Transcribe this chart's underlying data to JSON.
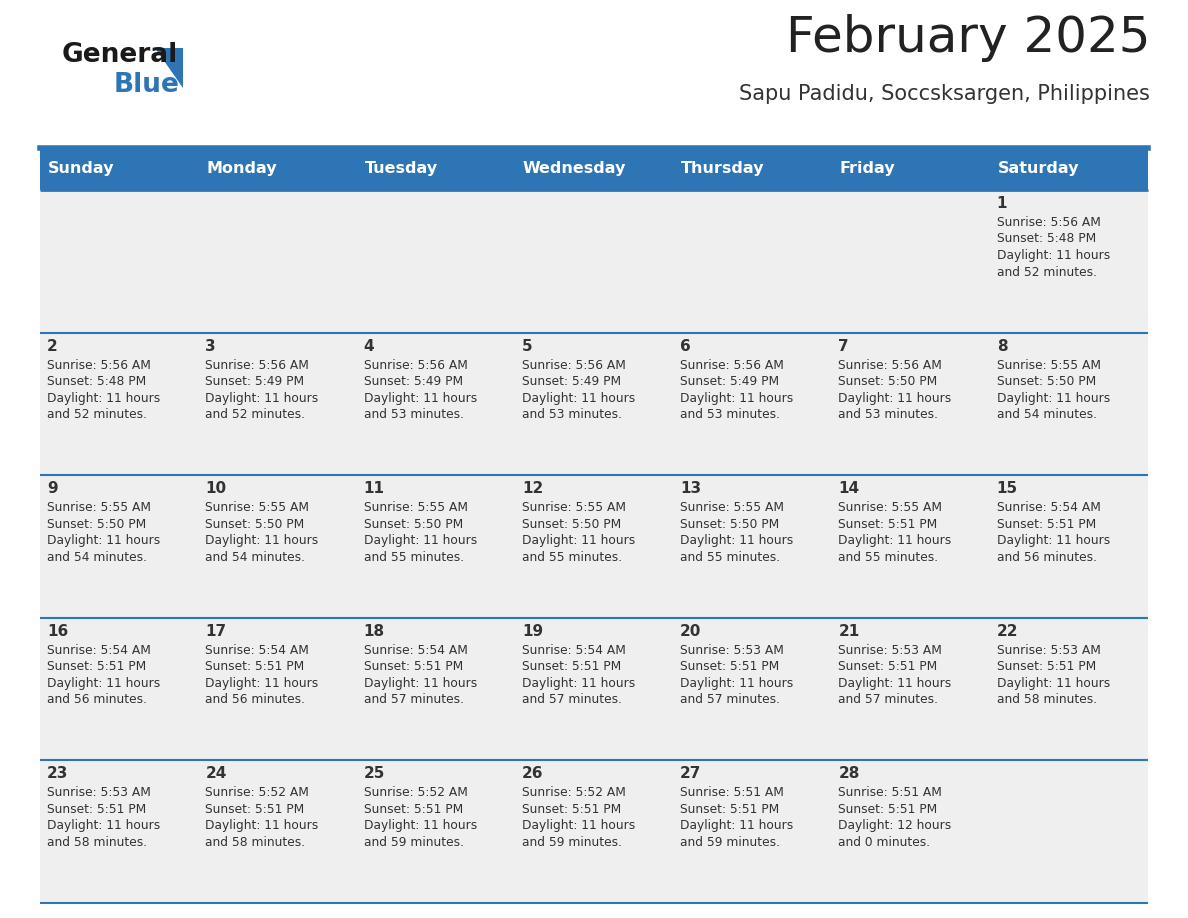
{
  "title": "February 2025",
  "subtitle": "Sapu Padidu, Soccsksargen, Philippines",
  "days_of_week": [
    "Sunday",
    "Monday",
    "Tuesday",
    "Wednesday",
    "Thursday",
    "Friday",
    "Saturday"
  ],
  "header_bg_color": "#2E75B6",
  "header_text_color": "#FFFFFF",
  "cell_bg_color": "#EFEFEF",
  "day_number_color": "#333333",
  "info_text_color": "#333333",
  "divider_color": "#2E75B6",
  "title_color": "#222222",
  "subtitle_color": "#333333",
  "logo_general_color": "#1a1a1a",
  "logo_blue_color": "#2E75B6",
  "calendar_data": [
    {
      "day": 1,
      "col": 6,
      "row": 0,
      "sunrise": "5:56 AM",
      "sunset": "5:48 PM",
      "daylight_hours": 11,
      "daylight_minutes": 52
    },
    {
      "day": 2,
      "col": 0,
      "row": 1,
      "sunrise": "5:56 AM",
      "sunset": "5:48 PM",
      "daylight_hours": 11,
      "daylight_minutes": 52
    },
    {
      "day": 3,
      "col": 1,
      "row": 1,
      "sunrise": "5:56 AM",
      "sunset": "5:49 PM",
      "daylight_hours": 11,
      "daylight_minutes": 52
    },
    {
      "day": 4,
      "col": 2,
      "row": 1,
      "sunrise": "5:56 AM",
      "sunset": "5:49 PM",
      "daylight_hours": 11,
      "daylight_minutes": 53
    },
    {
      "day": 5,
      "col": 3,
      "row": 1,
      "sunrise": "5:56 AM",
      "sunset": "5:49 PM",
      "daylight_hours": 11,
      "daylight_minutes": 53
    },
    {
      "day": 6,
      "col": 4,
      "row": 1,
      "sunrise": "5:56 AM",
      "sunset": "5:49 PM",
      "daylight_hours": 11,
      "daylight_minutes": 53
    },
    {
      "day": 7,
      "col": 5,
      "row": 1,
      "sunrise": "5:56 AM",
      "sunset": "5:50 PM",
      "daylight_hours": 11,
      "daylight_minutes": 53
    },
    {
      "day": 8,
      "col": 6,
      "row": 1,
      "sunrise": "5:55 AM",
      "sunset": "5:50 PM",
      "daylight_hours": 11,
      "daylight_minutes": 54
    },
    {
      "day": 9,
      "col": 0,
      "row": 2,
      "sunrise": "5:55 AM",
      "sunset": "5:50 PM",
      "daylight_hours": 11,
      "daylight_minutes": 54
    },
    {
      "day": 10,
      "col": 1,
      "row": 2,
      "sunrise": "5:55 AM",
      "sunset": "5:50 PM",
      "daylight_hours": 11,
      "daylight_minutes": 54
    },
    {
      "day": 11,
      "col": 2,
      "row": 2,
      "sunrise": "5:55 AM",
      "sunset": "5:50 PM",
      "daylight_hours": 11,
      "daylight_minutes": 55
    },
    {
      "day": 12,
      "col": 3,
      "row": 2,
      "sunrise": "5:55 AM",
      "sunset": "5:50 PM",
      "daylight_hours": 11,
      "daylight_minutes": 55
    },
    {
      "day": 13,
      "col": 4,
      "row": 2,
      "sunrise": "5:55 AM",
      "sunset": "5:50 PM",
      "daylight_hours": 11,
      "daylight_minutes": 55
    },
    {
      "day": 14,
      "col": 5,
      "row": 2,
      "sunrise": "5:55 AM",
      "sunset": "5:51 PM",
      "daylight_hours": 11,
      "daylight_minutes": 55
    },
    {
      "day": 15,
      "col": 6,
      "row": 2,
      "sunrise": "5:54 AM",
      "sunset": "5:51 PM",
      "daylight_hours": 11,
      "daylight_minutes": 56
    },
    {
      "day": 16,
      "col": 0,
      "row": 3,
      "sunrise": "5:54 AM",
      "sunset": "5:51 PM",
      "daylight_hours": 11,
      "daylight_minutes": 56
    },
    {
      "day": 17,
      "col": 1,
      "row": 3,
      "sunrise": "5:54 AM",
      "sunset": "5:51 PM",
      "daylight_hours": 11,
      "daylight_minutes": 56
    },
    {
      "day": 18,
      "col": 2,
      "row": 3,
      "sunrise": "5:54 AM",
      "sunset": "5:51 PM",
      "daylight_hours": 11,
      "daylight_minutes": 57
    },
    {
      "day": 19,
      "col": 3,
      "row": 3,
      "sunrise": "5:54 AM",
      "sunset": "5:51 PM",
      "daylight_hours": 11,
      "daylight_minutes": 57
    },
    {
      "day": 20,
      "col": 4,
      "row": 3,
      "sunrise": "5:53 AM",
      "sunset": "5:51 PM",
      "daylight_hours": 11,
      "daylight_minutes": 57
    },
    {
      "day": 21,
      "col": 5,
      "row": 3,
      "sunrise": "5:53 AM",
      "sunset": "5:51 PM",
      "daylight_hours": 11,
      "daylight_minutes": 57
    },
    {
      "day": 22,
      "col": 6,
      "row": 3,
      "sunrise": "5:53 AM",
      "sunset": "5:51 PM",
      "daylight_hours": 11,
      "daylight_minutes": 58
    },
    {
      "day": 23,
      "col": 0,
      "row": 4,
      "sunrise": "5:53 AM",
      "sunset": "5:51 PM",
      "daylight_hours": 11,
      "daylight_minutes": 58
    },
    {
      "day": 24,
      "col": 1,
      "row": 4,
      "sunrise": "5:52 AM",
      "sunset": "5:51 PM",
      "daylight_hours": 11,
      "daylight_minutes": 58
    },
    {
      "day": 25,
      "col": 2,
      "row": 4,
      "sunrise": "5:52 AM",
      "sunset": "5:51 PM",
      "daylight_hours": 11,
      "daylight_minutes": 59
    },
    {
      "day": 26,
      "col": 3,
      "row": 4,
      "sunrise": "5:52 AM",
      "sunset": "5:51 PM",
      "daylight_hours": 11,
      "daylight_minutes": 59
    },
    {
      "day": 27,
      "col": 4,
      "row": 4,
      "sunrise": "5:51 AM",
      "sunset": "5:51 PM",
      "daylight_hours": 11,
      "daylight_minutes": 59
    },
    {
      "day": 28,
      "col": 5,
      "row": 4,
      "sunrise": "5:51 AM",
      "sunset": "5:51 PM",
      "daylight_hours": 12,
      "daylight_minutes": 0
    }
  ],
  "num_rows": 5,
  "num_cols": 7
}
